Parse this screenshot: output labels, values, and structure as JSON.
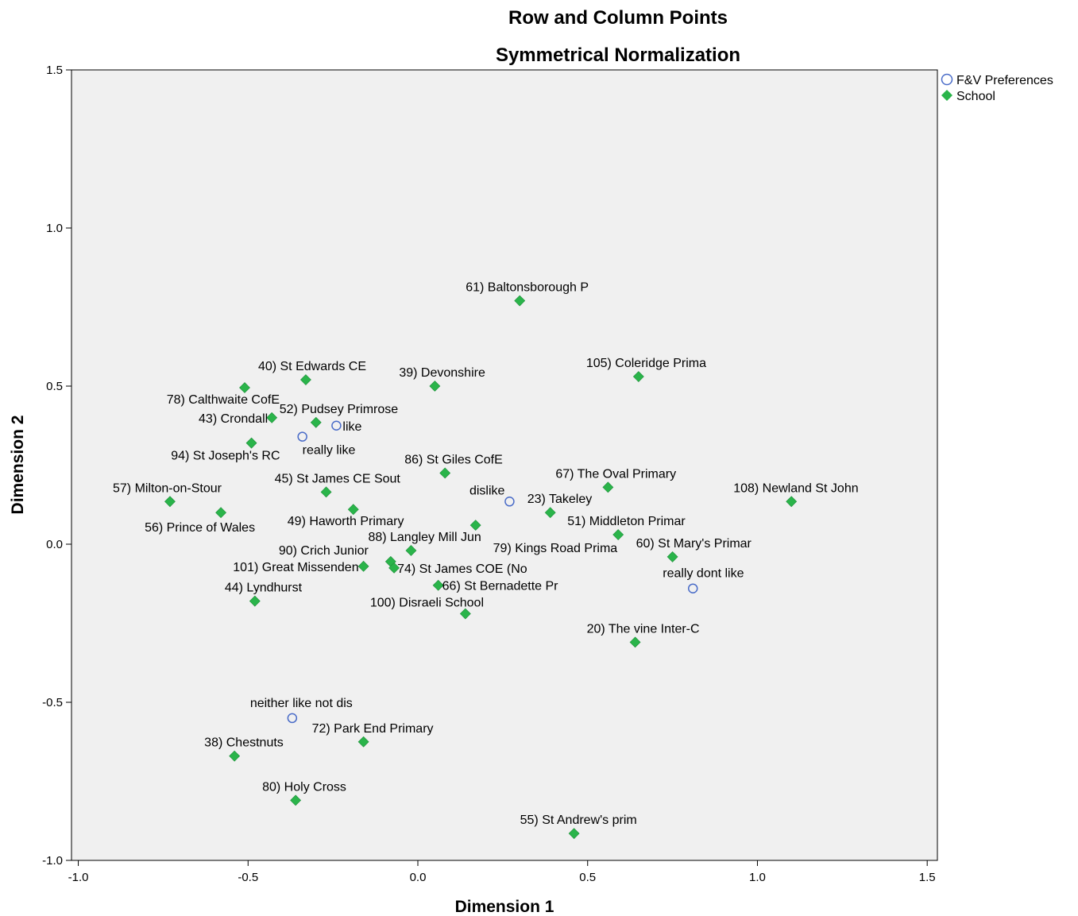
{
  "chart_data": {
    "type": "scatter",
    "title": "Row and Column Points",
    "subtitle": "Symmetrical Normalization",
    "xlabel": "Dimension 1",
    "ylabel": "Dimension 2",
    "xlim": [
      -1.02,
      1.53
    ],
    "ylim": [
      -1.0,
      1.5
    ],
    "xticks": [
      -1.0,
      -0.5,
      0.0,
      0.5,
      1.0,
      1.5
    ],
    "xtick_labels": [
      "-1.0",
      "-0.5",
      "0.0",
      "0.5",
      "1.0",
      "1.5"
    ],
    "yticks": [
      -1.0,
      -0.5,
      0.0,
      0.5,
      1.0,
      1.5
    ],
    "ytick_labels": [
      "-1.0",
      "-0.5",
      "0.0",
      "0.5",
      "1.0",
      "1.5"
    ],
    "grid": false,
    "background": "#f0f0f0",
    "legend_position": "top-right, outside plot",
    "series": [
      {
        "name": "F&V Preferences",
        "marker": "open-circle",
        "color": "#4a6cc8",
        "points": [
          {
            "label": "like",
            "x": -0.24,
            "y": 0.375
          },
          {
            "label": "really like",
            "x": -0.34,
            "y": 0.34
          },
          {
            "label": "dislike",
            "x": 0.27,
            "y": 0.135
          },
          {
            "label": "really dont like",
            "x": 0.81,
            "y": -0.14
          },
          {
            "label": "neither like not dis",
            "x": -0.37,
            "y": -0.55
          }
        ]
      },
      {
        "name": "School",
        "marker": "filled-diamond",
        "color": "#2ab44a",
        "points": [
          {
            "label": "61) Baltonsborough P",
            "x": 0.3,
            "y": 0.77
          },
          {
            "label": "40) St Edwards CE",
            "x": -0.33,
            "y": 0.52
          },
          {
            "label": "39) Devonshire",
            "x": 0.05,
            "y": 0.5
          },
          {
            "label": "105) Coleridge Prima",
            "x": 0.65,
            "y": 0.53
          },
          {
            "label": "78) Calthwaite CofE",
            "x": -0.51,
            "y": 0.495
          },
          {
            "label": "43) Crondall",
            "x": -0.43,
            "y": 0.4
          },
          {
            "label": "52) Pudsey Primrose",
            "x": -0.3,
            "y": 0.385
          },
          {
            "label": "94) St Joseph's RC",
            "x": -0.49,
            "y": 0.32
          },
          {
            "label": "86) St Giles CofE",
            "x": 0.08,
            "y": 0.225
          },
          {
            "label": "67) The Oval Primary",
            "x": 0.56,
            "y": 0.18
          },
          {
            "label": "108) Newland St John",
            "x": 1.1,
            "y": 0.135
          },
          {
            "label": "57) Milton-on-Stour",
            "x": -0.73,
            "y": 0.135
          },
          {
            "label": "45) St James CE Sout",
            "x": -0.27,
            "y": 0.165
          },
          {
            "label": "56) Prince of Wales",
            "x": -0.58,
            "y": 0.1
          },
          {
            "label": "49) Haworth Primary",
            "x": -0.19,
            "y": 0.11
          },
          {
            "label": "23) Takeley",
            "x": 0.39,
            "y": 0.1
          },
          {
            "label": "51) Middleton Primar",
            "x": 0.59,
            "y": 0.03
          },
          {
            "label": "79) Kings Road Prima",
            "x": 0.17,
            "y": 0.06
          },
          {
            "label": "88) Langley Mill Jun",
            "x": -0.02,
            "y": -0.02
          },
          {
            "label": "60) St Mary's Primar",
            "x": 0.75,
            "y": -0.04
          },
          {
            "label": "90) Crich Junior",
            "x": -0.08,
            "y": -0.055
          },
          {
            "label": "101) Great Missenden",
            "x": -0.16,
            "y": -0.07
          },
          {
            "label": "74) St James COE (No",
            "x": -0.07,
            "y": -0.075
          },
          {
            "label": "66) St Bernadette Pr",
            "x": 0.06,
            "y": -0.13
          },
          {
            "label": "44) Lyndhurst",
            "x": -0.48,
            "y": -0.18
          },
          {
            "label": "100) Disraeli School",
            "x": 0.14,
            "y": -0.22
          },
          {
            "label": "20) The vine Inter-C",
            "x": 0.64,
            "y": -0.31
          },
          {
            "label": "72) Park End Primary",
            "x": -0.16,
            "y": -0.625
          },
          {
            "label": "38) Chestnuts",
            "x": -0.54,
            "y": -0.67
          },
          {
            "label": "80) Holy Cross",
            "x": -0.36,
            "y": -0.81
          },
          {
            "label": "55) St Andrew's prim",
            "x": 0.46,
            "y": -0.915
          }
        ]
      }
    ]
  }
}
